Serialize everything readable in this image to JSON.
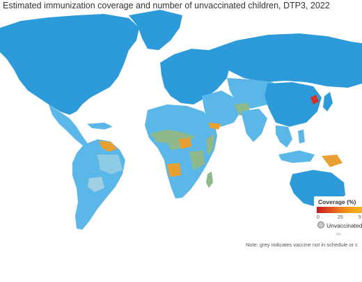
{
  "title": "Estimated immunization coverage and number of unvaccinated children, DTP3, 2022",
  "legend": {
    "title": "Coverage (%)",
    "ticks": [
      "0",
      "25",
      "5"
    ],
    "unvaccinated_label": "Unvaccinated",
    "source_fragment": "Ma"
  },
  "note": "Note: grey indicates vaccine not in schedule or c",
  "colors": {
    "ocean": "#ffffff",
    "high_coverage": "#2d9ad9",
    "medium_coverage": "#5bb7e8",
    "lower_coverage": "#9fcfe0",
    "mid_low": "#8fb98a",
    "low": "#e8a033",
    "very_low": "#d2322a"
  }
}
